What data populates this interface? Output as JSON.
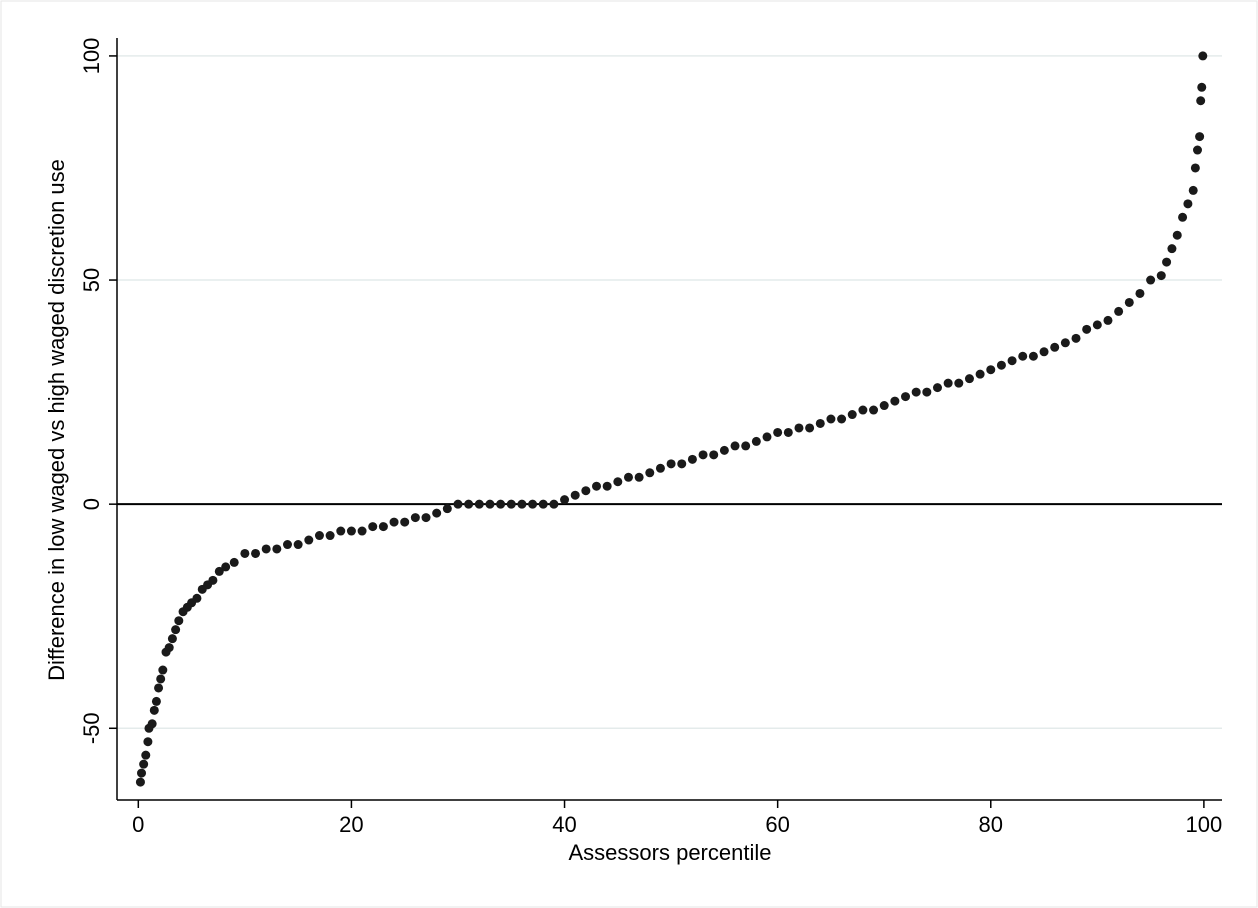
{
  "chart_data": {
    "type": "scatter",
    "x_label": "Assessors percentile",
    "y_label": "Difference in low waged vs high waged discretion use",
    "color": "#1a1a1a",
    "xlim": [
      -2,
      101.7
    ],
    "ylim": [
      -66,
      104
    ],
    "xticks": [
      0,
      20,
      40,
      60,
      80,
      100
    ],
    "yticks": [
      -50,
      0,
      50,
      100
    ],
    "grid": true,
    "reference_line": 0,
    "x": [
      0.2,
      0.3,
      0.5,
      0.7,
      0.9,
      1.0,
      1.3,
      1.5,
      1.7,
      1.9,
      2.1,
      2.3,
      2.6,
      2.9,
      3.2,
      3.5,
      3.8,
      4.2,
      4.6,
      5.0,
      5.5,
      6.0,
      6.5,
      7.0,
      7.6,
      8.2,
      9,
      10,
      11,
      12,
      13,
      14,
      15,
      16,
      17,
      18,
      19,
      20,
      21,
      22,
      23,
      24,
      25,
      26,
      27,
      28,
      29,
      30,
      31,
      32,
      33,
      34,
      35,
      36,
      37,
      38,
      39,
      40,
      41,
      42,
      43,
      44,
      45,
      46,
      47,
      48,
      49,
      50,
      51,
      52,
      53,
      54,
      55,
      56,
      57,
      58,
      59,
      60,
      61,
      62,
      63,
      64,
      65,
      66,
      67,
      68,
      69,
      70,
      71,
      72,
      73,
      74,
      75,
      76,
      77,
      78,
      79,
      80,
      81,
      82,
      83,
      84,
      85,
      86,
      87,
      88,
      89,
      90,
      91,
      92,
      93,
      94,
      95,
      96,
      96.5,
      97,
      97.5,
      98,
      98.5,
      99,
      99.2,
      99.4,
      99.6,
      99.7,
      99.8,
      99.9
    ],
    "values": [
      -62,
      -60,
      -58,
      -56,
      -53,
      -50,
      -49,
      -46,
      -44,
      -41,
      -39,
      -37,
      -33,
      -32,
      -30,
      -28,
      -26,
      -24,
      -23,
      -22,
      -21,
      -19,
      -18,
      -17,
      -15,
      -14,
      -13,
      -11,
      -11,
      -10,
      -10,
      -9,
      -9,
      -8,
      -7,
      -7,
      -6,
      -6,
      -6,
      -5,
      -5,
      -4,
      -4,
      -3,
      -3,
      -2,
      -1,
      0,
      0,
      0,
      0,
      0,
      0,
      0,
      0,
      0,
      0,
      1,
      2,
      3,
      4,
      4,
      5,
      6,
      6,
      7,
      8,
      9,
      9,
      10,
      11,
      11,
      12,
      13,
      13,
      14,
      15,
      16,
      16,
      17,
      17,
      18,
      19,
      19,
      20,
      21,
      21,
      22,
      23,
      24,
      25,
      25,
      26,
      27,
      27,
      28,
      29,
      30,
      31,
      32,
      33,
      33,
      34,
      35,
      36,
      37,
      39,
      40,
      41,
      43,
      45,
      47,
      50,
      51,
      54,
      57,
      60,
      64,
      67,
      70,
      75,
      79,
      82,
      90,
      93,
      100
    ]
  }
}
